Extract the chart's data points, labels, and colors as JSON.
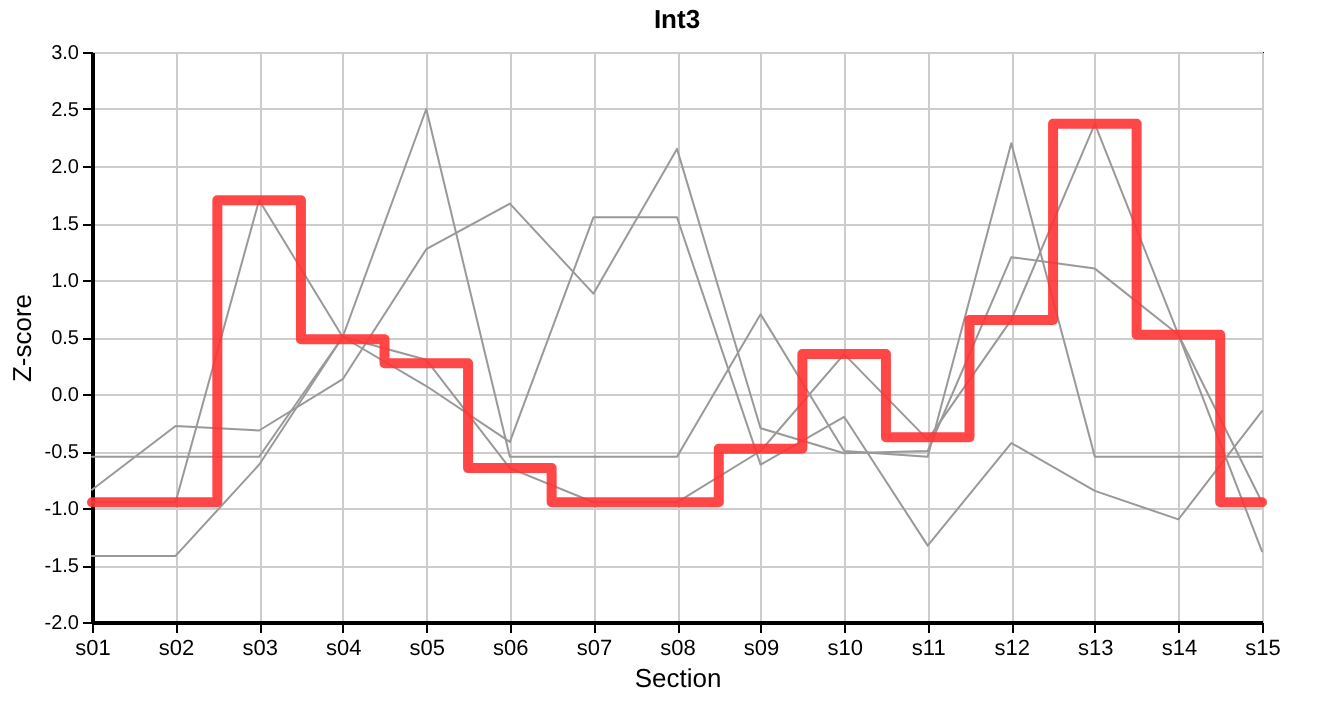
{
  "chart_data": {
    "type": "line",
    "title": "Int3",
    "xlabel": "Section",
    "ylabel": "Z-score",
    "categories": [
      "s01",
      "s02",
      "s03",
      "s04",
      "s05",
      "s06",
      "s07",
      "s08",
      "s09",
      "s10",
      "s11",
      "s12",
      "s13",
      "s14",
      "s15"
    ],
    "series": [
      {
        "color": "#999999",
        "values": [
          -0.55,
          -0.55,
          -0.55,
          0.5,
          2.5,
          -0.55,
          -0.55,
          -0.55,
          0.7,
          -0.5,
          -0.55,
          2.2,
          -0.55,
          -0.55,
          -0.55
        ]
      },
      {
        "color": "#999999",
        "values": [
          -0.95,
          -0.95,
          1.7,
          0.5,
          0.3,
          -0.65,
          -0.95,
          -0.95,
          -0.5,
          0.35,
          -0.4,
          0.65,
          2.37,
          0.52,
          -0.95
        ]
      },
      {
        "color": "#999999",
        "values": [
          -0.84,
          -0.28,
          -0.32,
          0.13,
          1.27,
          1.67,
          0.88,
          2.15,
          -0.3,
          -0.52,
          -0.5,
          1.2,
          1.1,
          0.52,
          -1.38
        ]
      },
      {
        "color": "#999999",
        "values": [
          -1.42,
          -1.42,
          -0.62,
          0.5,
          0.07,
          -0.42,
          1.55,
          1.55,
          -0.62,
          -0.2,
          -1.33,
          -0.43,
          -0.85,
          -1.1,
          -0.15
        ]
      },
      {
        "type": "step",
        "color": "#ff3333",
        "values": [
          -0.95,
          -0.95,
          1.7,
          0.48,
          0.27,
          -0.65,
          -0.95,
          -0.95,
          -0.48,
          0.35,
          -0.38,
          0.65,
          2.37,
          0.52,
          -0.95
        ]
      }
    ],
    "ylim": [
      -2,
      3
    ],
    "yticks": [
      {
        "value": -2,
        "label": "-2.0"
      },
      {
        "value": -1.5,
        "label": "-1.5"
      },
      {
        "value": -1,
        "label": "-1.0"
      },
      {
        "value": -0.5,
        "label": "-0.5"
      },
      {
        "value": 0,
        "label": "0.0"
      },
      {
        "value": 0.5,
        "label": "0.5"
      },
      {
        "value": 1,
        "label": "1.0"
      },
      {
        "value": 1.5,
        "label": "1.5"
      },
      {
        "value": 2,
        "label": "2.0"
      },
      {
        "value": 2.5,
        "label": "2.5"
      },
      {
        "value": 3,
        "label": "3.0"
      }
    ],
    "grid": true
  }
}
